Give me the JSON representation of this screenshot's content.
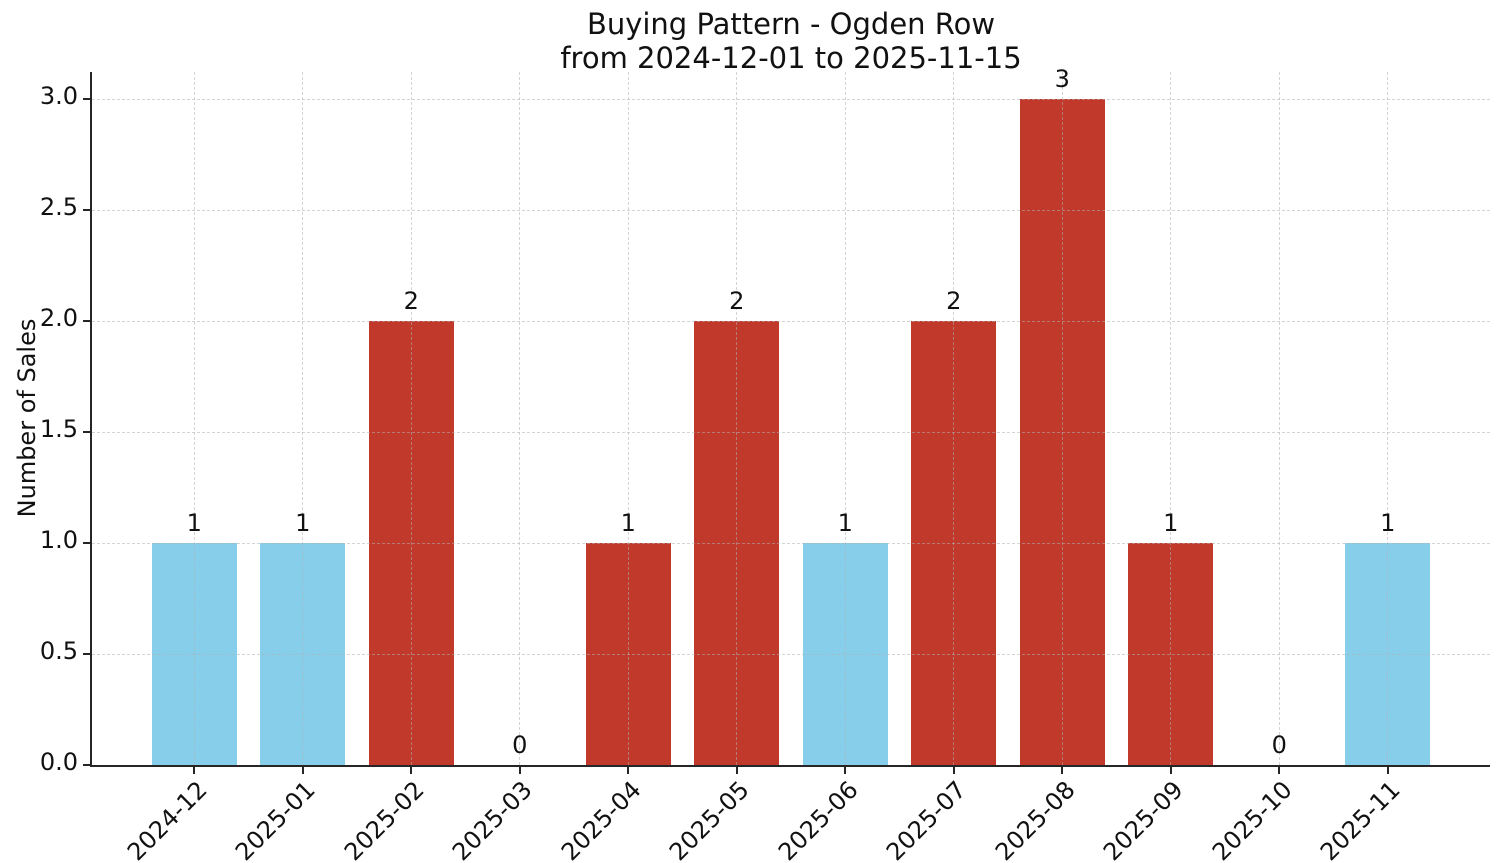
{
  "chart_data": {
    "type": "bar",
    "title": "Buying Pattern - Ogden Row",
    "subtitle": "from 2024-12-01 to 2025-11-15",
    "xlabel": "",
    "ylabel": "Number of Sales",
    "categories": [
      "2024-12",
      "2025-01",
      "2025-02",
      "2025-03",
      "2025-04",
      "2025-05",
      "2025-06",
      "2025-07",
      "2025-08",
      "2025-09",
      "2025-10",
      "2025-11"
    ],
    "values": [
      1,
      1,
      2,
      0,
      1,
      2,
      1,
      2,
      3,
      1,
      0,
      1
    ],
    "value_labels": [
      "1",
      "1",
      "2",
      "0",
      "1",
      "2",
      "1",
      "2",
      "3",
      "1",
      "0",
      "1"
    ],
    "bar_colors": [
      "#87CEEB",
      "#87CEEB",
      "#C0392B",
      null,
      "#C0392B",
      "#C0392B",
      "#87CEEB",
      "#C0392B",
      "#C0392B",
      "#C0392B",
      null,
      "#87CEEB"
    ],
    "ytick_labels": [
      "0.0",
      "0.5",
      "1.0",
      "1.5",
      "2.0",
      "2.5",
      "3.0"
    ],
    "yticks": [
      0,
      0.5,
      1,
      1.5,
      2,
      2.5,
      3
    ],
    "ylim": [
      0,
      3.12
    ],
    "grid": {
      "style": "dashed",
      "color": "#b0b0b0",
      "alpha": 0.55,
      "x": true,
      "y": true
    },
    "legend_position": "none",
    "colors": {
      "bar_normal": "#87CEEB",
      "bar_highlight": "#C0392B",
      "axis": "#262626",
      "background": "#ffffff"
    }
  }
}
